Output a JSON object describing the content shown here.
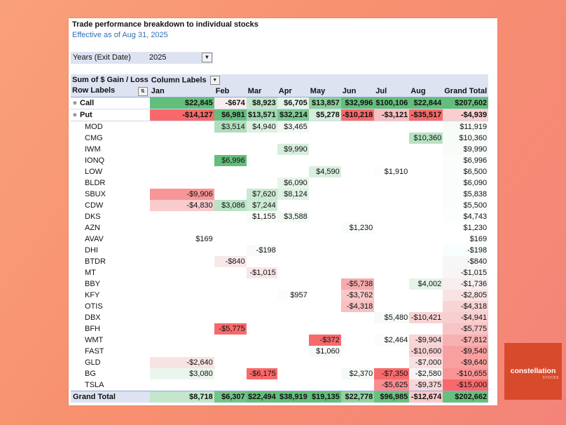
{
  "header": {
    "title": "Trade performance breakdown to individual stocks",
    "subtitle": "Effective as of Aug 31, 2025"
  },
  "filter": {
    "label": "Years (Exit Date)",
    "value": "2025"
  },
  "pivot": {
    "corner_label": "Sum of $ Gain / Loss",
    "column_labels": "Column Labels",
    "row_labels": "Row Labels",
    "months": [
      "Jan",
      "Feb",
      "Mar",
      "Apr",
      "May",
      "Jun",
      "Jul",
      "Aug"
    ],
    "grand_total_label": "Grand Total",
    "groups": [
      {
        "label": "Call",
        "values": [
          "$22,845",
          "-$674",
          "$8,923",
          "$6,705",
          "$13,857",
          "$32,996",
          "$100,106",
          "$22,844",
          "$207,602"
        ]
      },
      {
        "label": "Put",
        "values": [
          "-$14,127",
          "$6,981",
          "$13,571",
          "$32,214",
          "$5,278",
          "-$10,218",
          "-$3,121",
          "-$35,517",
          "-$4,939"
        ]
      }
    ],
    "rows": [
      {
        "label": "MOD",
        "values": [
          "",
          "$3,514",
          "$4,940",
          "$3,465",
          "",
          "",
          "",
          "",
          "$11,919"
        ]
      },
      {
        "label": "CMG",
        "values": [
          "",
          "",
          "",
          "",
          "",
          "",
          "",
          "$10,360",
          "$10,360"
        ]
      },
      {
        "label": "IWM",
        "values": [
          "",
          "",
          "",
          "$9,990",
          "",
          "",
          "",
          "",
          "$9,990"
        ]
      },
      {
        "label": "IONQ",
        "values": [
          "",
          "$6,996",
          "",
          "",
          "",
          "",
          "",
          "",
          "$6,996"
        ]
      },
      {
        "label": "LOW",
        "values": [
          "",
          "",
          "",
          "",
          "$4,590",
          "",
          "$1,910",
          "",
          "$6,500"
        ]
      },
      {
        "label": "BLDR",
        "values": [
          "",
          "",
          "",
          "$6,090",
          "",
          "",
          "",
          "",
          "$6,090"
        ]
      },
      {
        "label": "SBUX",
        "values": [
          "-$9,906",
          "",
          "$7,620",
          "$8,124",
          "",
          "",
          "",
          "",
          "$5,838"
        ]
      },
      {
        "label": "CDW",
        "values": [
          "-$4,830",
          "$3,086",
          "$7,244",
          "",
          "",
          "",
          "",
          "",
          "$5,500"
        ]
      },
      {
        "label": "DKS",
        "values": [
          "",
          "",
          "$1,155",
          "$3,588",
          "",
          "",
          "",
          "",
          "$4,743"
        ]
      },
      {
        "label": "AZN",
        "values": [
          "",
          "",
          "",
          "",
          "",
          "$1,230",
          "",
          "",
          "$1,230"
        ]
      },
      {
        "label": "AVAV",
        "values": [
          "$169",
          "",
          "",
          "",
          "",
          "",
          "",
          "",
          "$169"
        ]
      },
      {
        "label": "DHI",
        "values": [
          "",
          "",
          "-$198",
          "",
          "",
          "",
          "",
          "",
          "-$198"
        ]
      },
      {
        "label": "BTDR",
        "values": [
          "",
          "-$840",
          "",
          "",
          "",
          "",
          "",
          "",
          "-$840"
        ]
      },
      {
        "label": "MT",
        "values": [
          "",
          "",
          "-$1,015",
          "",
          "",
          "",
          "",
          "",
          "-$1,015"
        ]
      },
      {
        "label": "BBY",
        "values": [
          "",
          "",
          "",
          "",
          "",
          "-$5,738",
          "",
          "$4,002",
          "-$1,736"
        ]
      },
      {
        "label": "KFY",
        "values": [
          "",
          "",
          "",
          "$957",
          "",
          "-$3,762",
          "",
          "",
          "-$2,805"
        ]
      },
      {
        "label": "OTIS",
        "values": [
          "",
          "",
          "",
          "",
          "",
          "-$4,318",
          "",
          "",
          "-$4,318"
        ]
      },
      {
        "label": "DBX",
        "values": [
          "",
          "",
          "",
          "",
          "",
          "",
          "$5,480",
          "-$10,421",
          "-$4,941"
        ]
      },
      {
        "label": "BFH",
        "values": [
          "",
          "-$5,775",
          "",
          "",
          "",
          "",
          "",
          "",
          "-$5,775"
        ]
      },
      {
        "label": "WMT",
        "values": [
          "",
          "",
          "",
          "",
          "-$372",
          "",
          "$2,464",
          "-$9,904",
          "-$7,812"
        ]
      },
      {
        "label": "FAST",
        "values": [
          "",
          "",
          "",
          "",
          "$1,060",
          "",
          "",
          "-$10,600",
          "-$9,540"
        ]
      },
      {
        "label": "GLD",
        "values": [
          "-$2,640",
          "",
          "",
          "",
          "",
          "",
          "",
          "-$7,000",
          "-$9,640"
        ]
      },
      {
        "label": "BG",
        "values": [
          "$3,080",
          "",
          "-$6,175",
          "",
          "",
          "$2,370",
          "-$7,350",
          "-$2,580",
          "-$10,655"
        ]
      },
      {
        "label": "TSLA",
        "values": [
          "",
          "",
          "",
          "",
          "",
          "",
          "-$5,625",
          "-$9,375",
          "-$15,000"
        ]
      }
    ],
    "grand_total_row": [
      "$8,718",
      "$6,307",
      "$22,494",
      "$38,919",
      "$19,135",
      "$22,778",
      "$96,985",
      "-$12,674",
      "$202,662"
    ]
  },
  "icons": {
    "filter": "filter-icon",
    "expand": "expand-toggle-icon",
    "sort": "sort-filter-icon"
  },
  "colors": {
    "header_bg": "#dde3f1",
    "accent_blue": "#2f6fb3",
    "negative_strong": "#f8696b",
    "positive_strong": "#63be7b",
    "brand": "#d84a2c"
  },
  "brand": {
    "name": "constellation",
    "sub": "STOCKS"
  }
}
